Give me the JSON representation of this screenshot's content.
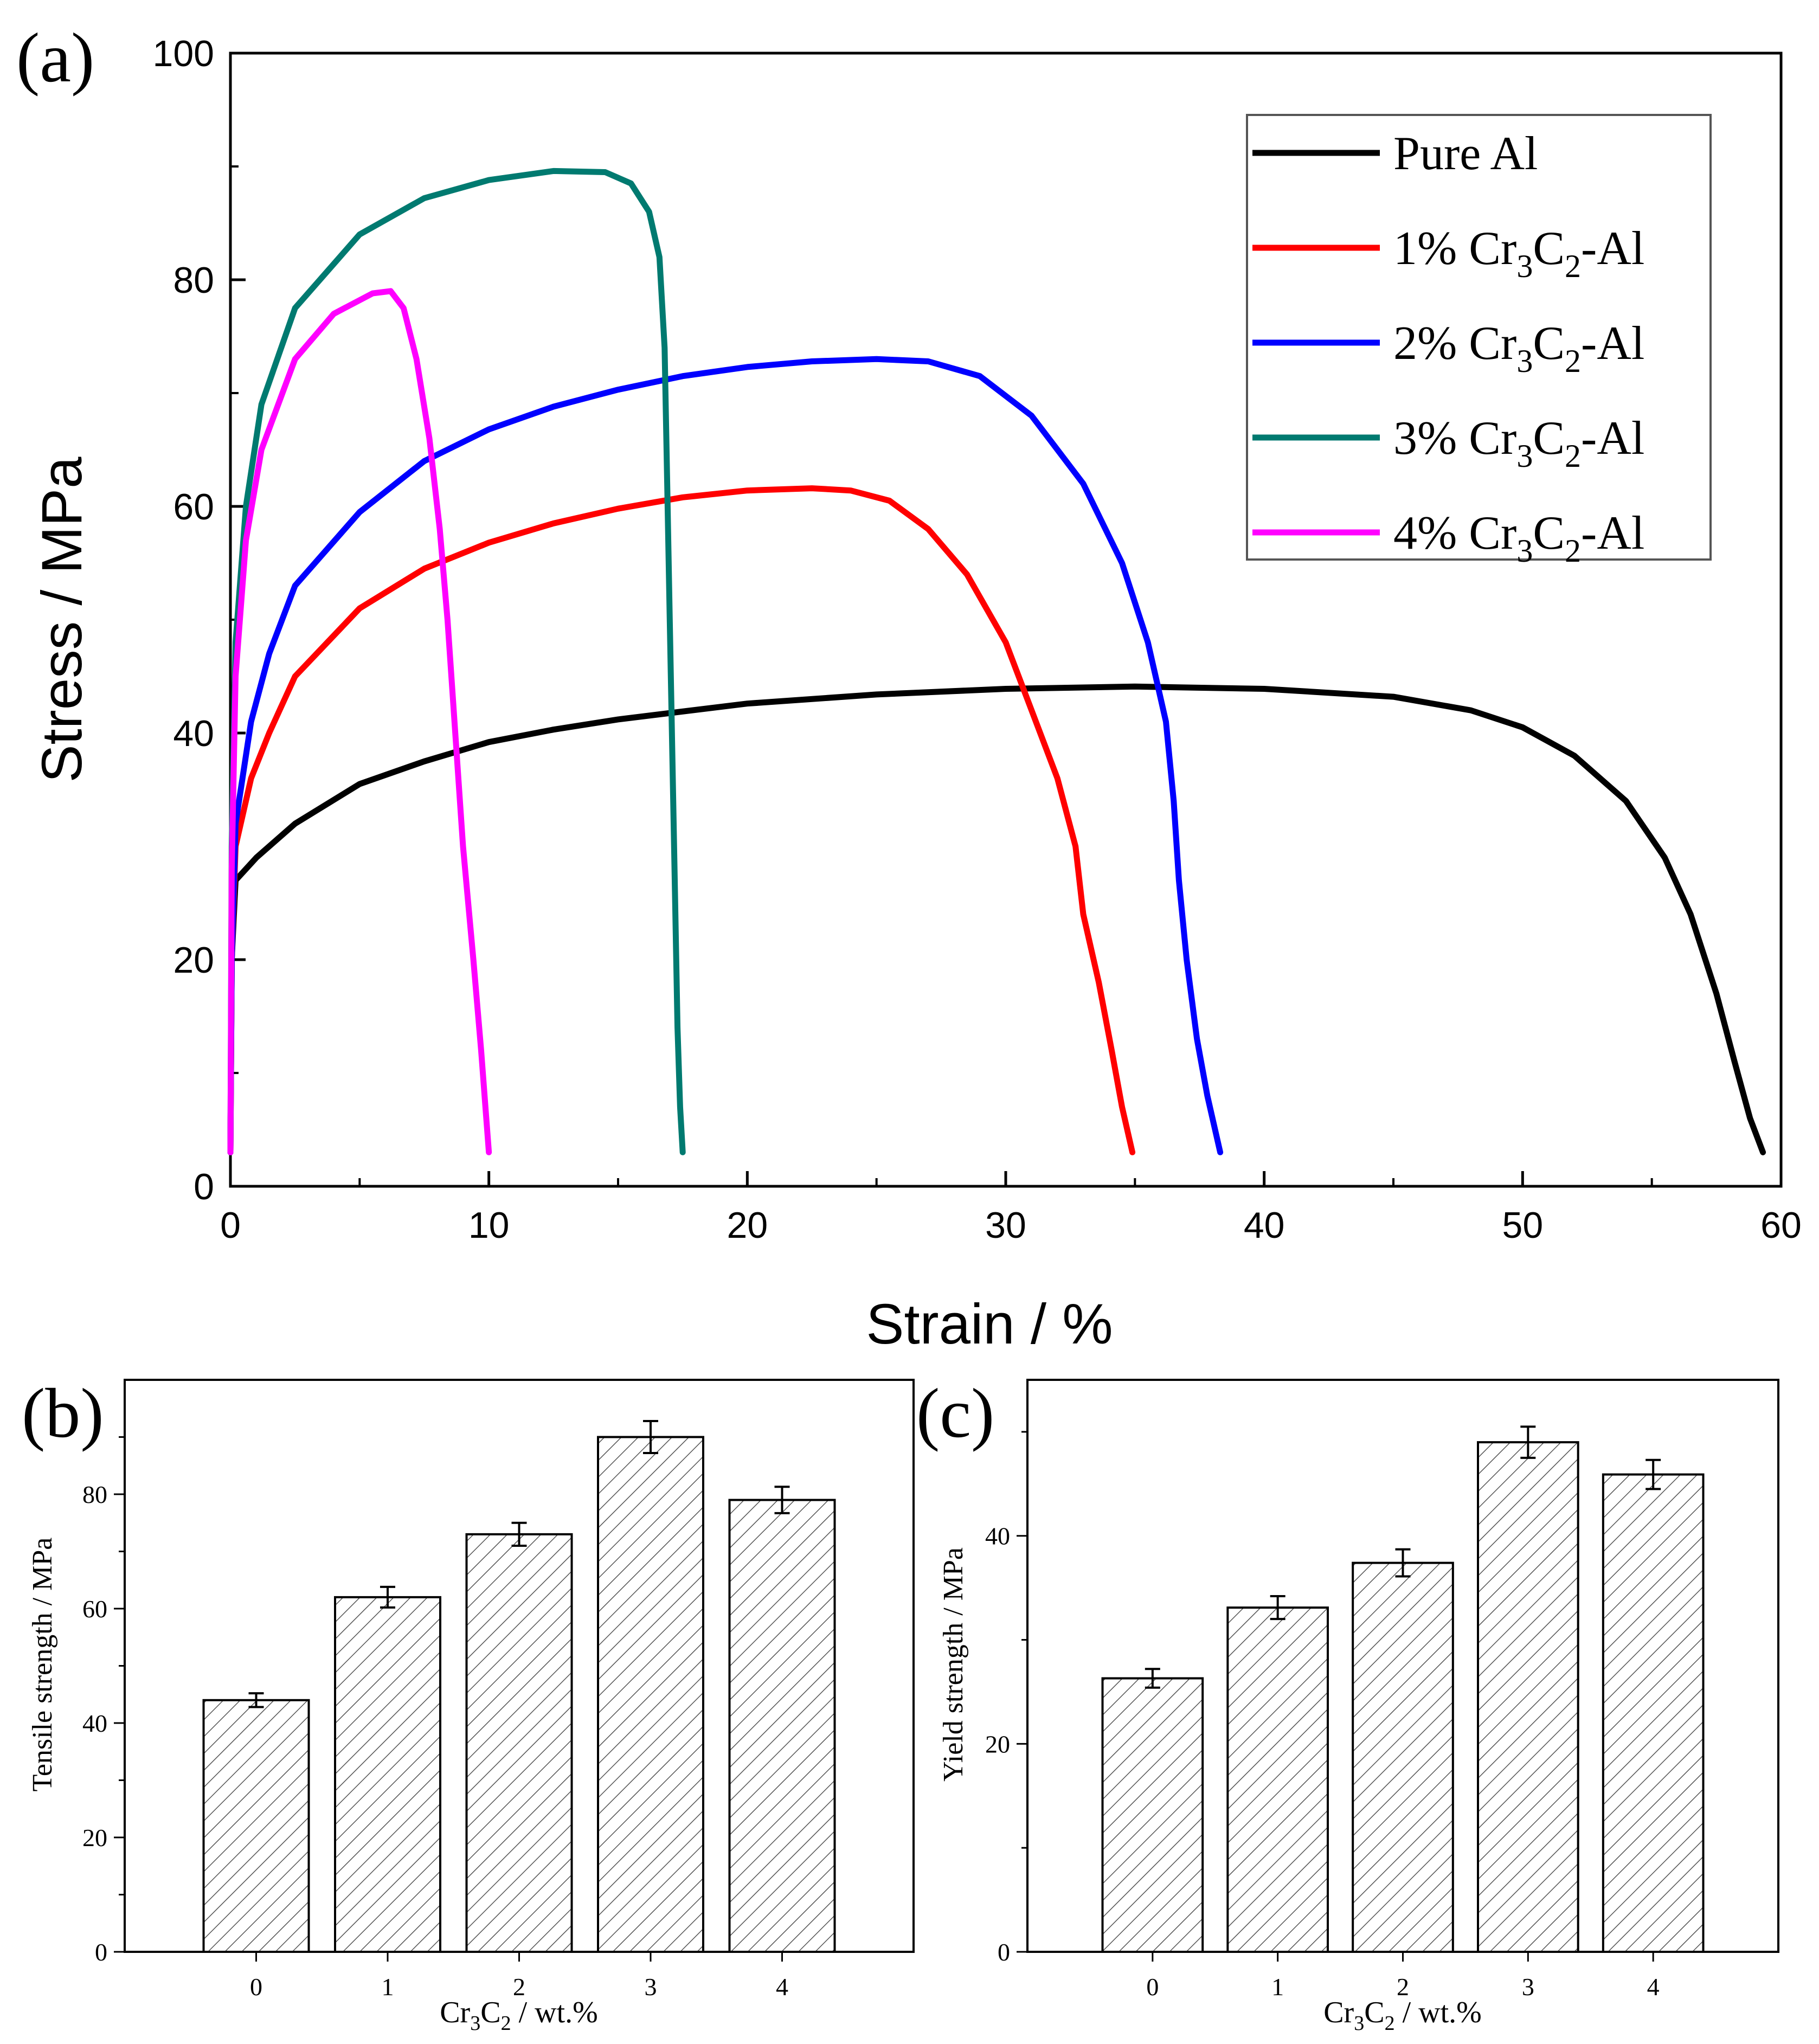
{
  "figure": {
    "panel_labels": [
      "(a)",
      "(b)",
      "(c)"
    ]
  },
  "chart_data": [
    {
      "panel": "(a)",
      "type": "line",
      "xlabel": "Strain / %",
      "ylabel": "Stress / MPa",
      "xlim": [
        0,
        60
      ],
      "ylim": [
        0,
        100
      ],
      "xticks": [
        "0",
        "10",
        "20",
        "30",
        "40",
        "50",
        "60"
      ],
      "yticks": [
        "0",
        "20",
        "40",
        "60",
        "80",
        "100"
      ],
      "legend_position": "top-right",
      "series": [
        {
          "name": "Pure Al",
          "legend_parts": [
            "Pure Al",
            "",
            "",
            "",
            ""
          ],
          "color": "#000000",
          "points": [
            [
              0,
              3
            ],
            [
              0.05,
              20
            ],
            [
              0.2,
              27
            ],
            [
              1,
              29
            ],
            [
              2.5,
              32
            ],
            [
              5,
              35.5
            ],
            [
              7.5,
              37.5
            ],
            [
              10,
              39.2
            ],
            [
              12.5,
              40.3
            ],
            [
              15,
              41.2
            ],
            [
              20,
              42.6
            ],
            [
              25,
              43.4
            ],
            [
              30,
              43.9
            ],
            [
              35,
              44.1
            ],
            [
              40,
              43.9
            ],
            [
              45,
              43.2
            ],
            [
              48,
              42
            ],
            [
              50,
              40.5
            ],
            [
              52,
              38
            ],
            [
              54,
              34
            ],
            [
              55.5,
              29
            ],
            [
              56.5,
              24
            ],
            [
              57.5,
              17
            ],
            [
              58.2,
              11
            ],
            [
              58.8,
              6
            ],
            [
              59.3,
              3
            ]
          ]
        },
        {
          "name": "1% Cr3C2-Al",
          "legend_parts": [
            "1% Cr",
            "3",
            "C",
            "2",
            "-Al"
          ],
          "color": "#ff0000",
          "points": [
            [
              0,
              3
            ],
            [
              0.05,
              20
            ],
            [
              0.2,
              30
            ],
            [
              0.8,
              36
            ],
            [
              1.5,
              40
            ],
            [
              2.5,
              45
            ],
            [
              5,
              51
            ],
            [
              7.5,
              54.5
            ],
            [
              10,
              56.8
            ],
            [
              12.5,
              58.5
            ],
            [
              15,
              59.8
            ],
            [
              17.5,
              60.8
            ],
            [
              20,
              61.4
            ],
            [
              22.5,
              61.6
            ],
            [
              24,
              61.4
            ],
            [
              25.5,
              60.5
            ],
            [
              27,
              58
            ],
            [
              28.5,
              54
            ],
            [
              30,
              48
            ],
            [
              31,
              42
            ],
            [
              32,
              36
            ],
            [
              32.7,
              30
            ],
            [
              33,
              24
            ],
            [
              33.6,
              18
            ],
            [
              34.1,
              12
            ],
            [
              34.5,
              7
            ],
            [
              34.9,
              3
            ]
          ]
        },
        {
          "name": "2% Cr3C2-Al",
          "legend_parts": [
            "2% Cr",
            "3",
            "C",
            "2",
            "-Al"
          ],
          "color": "#0000ff",
          "points": [
            [
              0,
              3
            ],
            [
              0.05,
              20
            ],
            [
              0.2,
              32
            ],
            [
              0.8,
              41
            ],
            [
              1.5,
              47
            ],
            [
              2.5,
              53
            ],
            [
              5,
              59.5
            ],
            [
              7.5,
              64
            ],
            [
              10,
              66.8
            ],
            [
              12.5,
              68.8
            ],
            [
              15,
              70.3
            ],
            [
              17.5,
              71.5
            ],
            [
              20,
              72.3
            ],
            [
              22.5,
              72.8
            ],
            [
              25,
              73
            ],
            [
              27,
              72.8
            ],
            [
              29,
              71.5
            ],
            [
              31,
              68
            ],
            [
              33,
              62
            ],
            [
              34.5,
              55
            ],
            [
              35.5,
              48
            ],
            [
              36.2,
              41
            ],
            [
              36.5,
              34
            ],
            [
              36.7,
              27
            ],
            [
              37,
              20
            ],
            [
              37.4,
              13
            ],
            [
              37.8,
              8
            ],
            [
              38.3,
              3
            ]
          ]
        },
        {
          "name": "3% Cr3C2-Al",
          "legend_parts": [
            "3% Cr",
            "3",
            "C",
            "2",
            "-Al"
          ],
          "color": "#007a70",
          "points": [
            [
              0,
              3
            ],
            [
              0.05,
              30
            ],
            [
              0.2,
              48
            ],
            [
              0.6,
              60
            ],
            [
              1.2,
              69
            ],
            [
              2.5,
              77.5
            ],
            [
              5,
              84
            ],
            [
              7.5,
              87.2
            ],
            [
              10,
              88.8
            ],
            [
              12.5,
              89.6
            ],
            [
              14.5,
              89.5
            ],
            [
              15.5,
              88.5
            ],
            [
              16.2,
              86
            ],
            [
              16.6,
              82
            ],
            [
              16.8,
              74
            ],
            [
              16.9,
              62
            ],
            [
              17,
              50
            ],
            [
              17.1,
              38
            ],
            [
              17.2,
              26
            ],
            [
              17.3,
              14
            ],
            [
              17.4,
              7
            ],
            [
              17.5,
              3
            ]
          ]
        },
        {
          "name": "4% Cr3C2-Al",
          "legend_parts": [
            "4% Cr",
            "3",
            "C",
            "2",
            "-Al"
          ],
          "color": "#ff00ff",
          "points": [
            [
              0,
              3
            ],
            [
              0.05,
              28
            ],
            [
              0.2,
              45
            ],
            [
              0.6,
              57
            ],
            [
              1.2,
              65
            ],
            [
              2.5,
              73
            ],
            [
              4,
              77
            ],
            [
              5.5,
              78.8
            ],
            [
              6.2,
              79
            ],
            [
              6.7,
              77.5
            ],
            [
              7.2,
              73
            ],
            [
              7.7,
              66
            ],
            [
              8.1,
              58
            ],
            [
              8.4,
              50
            ],
            [
              8.7,
              40
            ],
            [
              9,
              30
            ],
            [
              9.4,
              20
            ],
            [
              9.7,
              12
            ],
            [
              9.9,
              6
            ],
            [
              10,
              3
            ]
          ]
        }
      ]
    },
    {
      "panel": "(b)",
      "type": "bar",
      "xlabel_parts": [
        "Cr",
        "3",
        "C",
        "2",
        " / wt.%"
      ],
      "ylabel": "Tensile strength / MPa",
      "categories": [
        "0",
        "1",
        "2",
        "3",
        "4"
      ],
      "values": [
        44,
        62,
        73,
        90,
        79
      ],
      "errors": [
        1.2,
        1.8,
        2.0,
        2.8,
        2.3
      ],
      "ylim": [
        0,
        100
      ],
      "yticks": [
        "0",
        "20",
        "40",
        "60",
        "80"
      ]
    },
    {
      "panel": "(c)",
      "type": "bar",
      "xlabel_parts": [
        "Cr",
        "3",
        "C",
        "2",
        " / wt.%"
      ],
      "ylabel": "Yield strength / MPa",
      "categories": [
        "0",
        "1",
        "2",
        "3",
        "4"
      ],
      "values": [
        26.3,
        33.1,
        37.4,
        49.0,
        45.9
      ],
      "errors": [
        0.9,
        1.1,
        1.3,
        1.5,
        1.4
      ],
      "ylim": [
        0,
        55
      ],
      "yticks": [
        "0",
        "20",
        "40"
      ]
    }
  ]
}
